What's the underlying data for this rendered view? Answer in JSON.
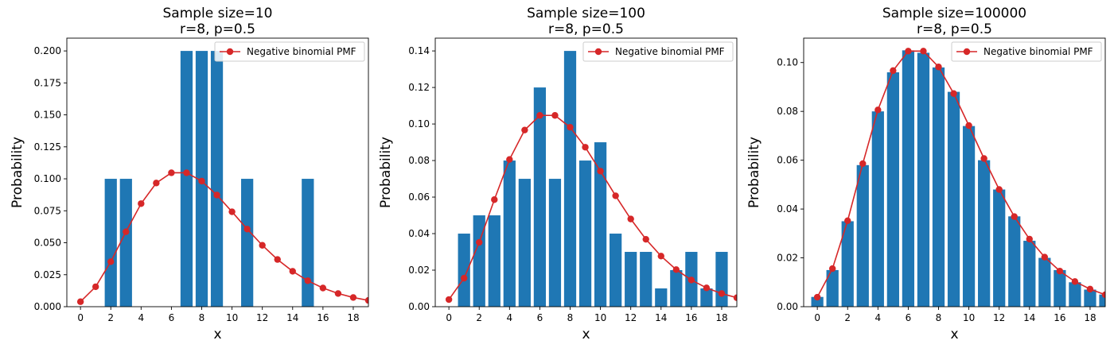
{
  "colors": {
    "bar": "#1f77b4",
    "line": "#d62728"
  },
  "chart_data": [
    {
      "type": "bar",
      "title": "Sample size=10",
      "subtitle": "r=8, p=0.5",
      "xlabel": "x",
      "ylabel": "Probability",
      "xlim": [
        -0.9,
        19
      ],
      "ylim": [
        0,
        0.21
      ],
      "xticks": [
        0,
        2,
        4,
        6,
        8,
        10,
        12,
        14,
        16,
        18
      ],
      "yticks": [
        0.0,
        0.025,
        0.05,
        0.075,
        0.1,
        0.125,
        0.15,
        0.175,
        0.2
      ],
      "yticklabels": [
        "0.000",
        "0.025",
        "0.050",
        "0.075",
        "0.100",
        "0.125",
        "0.150",
        "0.175",
        "0.200"
      ],
      "legend": {
        "label": "Negative binomial PMF",
        "placement": "top-right"
      },
      "bars": {
        "x": [
          2,
          3,
          7,
          8,
          9,
          11,
          15
        ],
        "values": [
          0.1,
          0.1,
          0.2,
          0.2,
          0.2,
          0.1,
          0.1
        ]
      },
      "series": [
        {
          "name": "Negative binomial PMF",
          "x": [
            0,
            1,
            2,
            3,
            4,
            5,
            6,
            7,
            8,
            9,
            10,
            11,
            12,
            13,
            14,
            15,
            16,
            17,
            18,
            19
          ],
          "values": [
            0.0039,
            0.0156,
            0.0352,
            0.0586,
            0.0806,
            0.0967,
            0.1047,
            0.1047,
            0.0982,
            0.0873,
            0.0742,
            0.0607,
            0.048,
            0.0369,
            0.0277,
            0.0203,
            0.0146,
            0.0103,
            0.0072,
            0.0049
          ]
        }
      ]
    },
    {
      "type": "bar",
      "title": "Sample size=100",
      "subtitle": "r=8, p=0.5",
      "xlabel": "x",
      "ylabel": "Probability",
      "xlim": [
        -0.9,
        19
      ],
      "ylim": [
        0,
        0.147
      ],
      "xticks": [
        0,
        2,
        4,
        6,
        8,
        10,
        12,
        14,
        16,
        18
      ],
      "yticks": [
        0.0,
        0.02,
        0.04,
        0.06,
        0.08,
        0.1,
        0.12,
        0.14
      ],
      "yticklabels": [
        "0.00",
        "0.02",
        "0.04",
        "0.06",
        "0.08",
        "0.10",
        "0.12",
        "0.14"
      ],
      "legend": {
        "label": "Negative binomial PMF",
        "placement": "top-right"
      },
      "bars": {
        "x": [
          1,
          2,
          3,
          4,
          5,
          6,
          7,
          8,
          9,
          10,
          11,
          12,
          13,
          14,
          15,
          16,
          17,
          18
        ],
        "values": [
          0.04,
          0.05,
          0.05,
          0.08,
          0.07,
          0.12,
          0.07,
          0.14,
          0.08,
          0.09,
          0.04,
          0.03,
          0.03,
          0.01,
          0.02,
          0.03,
          0.01,
          0.03
        ]
      },
      "series": [
        {
          "name": "Negative binomial PMF",
          "x": [
            0,
            1,
            2,
            3,
            4,
            5,
            6,
            7,
            8,
            9,
            10,
            11,
            12,
            13,
            14,
            15,
            16,
            17,
            18,
            19
          ],
          "values": [
            0.0039,
            0.0156,
            0.0352,
            0.0586,
            0.0806,
            0.0967,
            0.1047,
            0.1047,
            0.0982,
            0.0873,
            0.0742,
            0.0607,
            0.048,
            0.0369,
            0.0277,
            0.0203,
            0.0146,
            0.0103,
            0.0072,
            0.0049
          ]
        }
      ]
    },
    {
      "type": "bar",
      "title": "Sample size=100000",
      "subtitle": "r=8, p=0.5",
      "xlabel": "x",
      "ylabel": "Probability",
      "xlim": [
        -0.9,
        19
      ],
      "ylim": [
        0,
        0.11
      ],
      "xticks": [
        0,
        2,
        4,
        6,
        8,
        10,
        12,
        14,
        16,
        18
      ],
      "yticks": [
        0.0,
        0.02,
        0.04,
        0.06,
        0.08,
        0.1
      ],
      "yticklabels": [
        "0.00",
        "0.02",
        "0.04",
        "0.06",
        "0.08",
        "0.10"
      ],
      "legend": {
        "label": "Negative binomial PMF",
        "placement": "top-right"
      },
      "bars": {
        "x": [
          0,
          1,
          2,
          3,
          4,
          5,
          6,
          7,
          8,
          9,
          10,
          11,
          12,
          13,
          14,
          15,
          16,
          17,
          18,
          19
        ],
        "values": [
          0.004,
          0.015,
          0.035,
          0.058,
          0.08,
          0.096,
          0.105,
          0.104,
          0.098,
          0.088,
          0.074,
          0.06,
          0.048,
          0.037,
          0.027,
          0.02,
          0.015,
          0.01,
          0.007,
          0.005
        ]
      },
      "series": [
        {
          "name": "Negative binomial PMF",
          "x": [
            0,
            1,
            2,
            3,
            4,
            5,
            6,
            7,
            8,
            9,
            10,
            11,
            12,
            13,
            14,
            15,
            16,
            17,
            18,
            19
          ],
          "values": [
            0.0039,
            0.0156,
            0.0352,
            0.0586,
            0.0806,
            0.0967,
            0.1047,
            0.1047,
            0.0982,
            0.0873,
            0.0742,
            0.0607,
            0.048,
            0.0369,
            0.0277,
            0.0203,
            0.0146,
            0.0103,
            0.0072,
            0.0049
          ]
        }
      ]
    }
  ]
}
